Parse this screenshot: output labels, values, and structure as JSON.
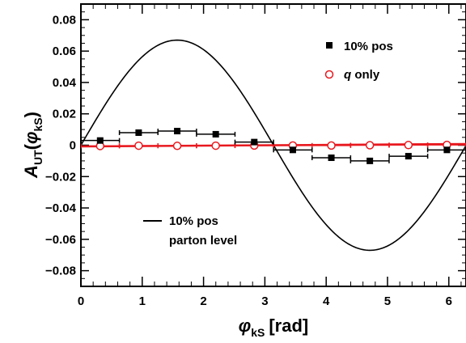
{
  "chart_data": {
    "type": "scatter",
    "xlabel": {
      "symbol": "φ",
      "subscript": "kS",
      "unit": "[rad]"
    },
    "ylabel": {
      "symbol": "A",
      "subscript": "UT",
      "arg_open": "(",
      "arg_symbol": "φ",
      "arg_subscript": "kS",
      "arg_close": ")"
    },
    "xlim": [
      0,
      6.28
    ],
    "ylim": [
      -0.09,
      0.09
    ],
    "x_ticks": [
      0,
      1,
      2,
      3,
      4,
      5,
      6
    ],
    "x_tick_labels": [
      "0",
      "1",
      "2",
      "3",
      "4",
      "5",
      "6"
    ],
    "y_ticks": [
      0.08,
      0.06,
      0.04,
      0.02,
      0,
      -0.02,
      -0.04,
      -0.06,
      -0.08
    ],
    "y_tick_labels": [
      "0.08",
      "0.06",
      "0.04",
      "0.02",
      "0",
      "−0.02",
      "−0.04",
      "−0.06",
      "−0.08"
    ],
    "series": [
      {
        "name": "10% pos",
        "marker": "filled-square",
        "color": "#000000",
        "x": [
          0.314,
          0.942,
          1.571,
          2.199,
          2.827,
          3.456,
          4.084,
          4.712,
          5.341,
          5.969
        ],
        "y": [
          0.003,
          0.008,
          0.009,
          0.007,
          0.002,
          -0.003,
          -0.008,
          -0.01,
          -0.007,
          -0.003
        ],
        "x_err": 0.314
      },
      {
        "name": "q only",
        "marker": "open-circle",
        "color": "#e8191f",
        "x": [
          0.314,
          0.942,
          1.571,
          2.199,
          2.827,
          3.456,
          4.084,
          4.712,
          5.341,
          5.969
        ],
        "y": [
          -0.0005,
          -0.0003,
          -0.0004,
          -0.0003,
          -0.0002,
          -0.0002,
          -0.0002,
          0.0,
          0.0001,
          0.0002
        ],
        "x_err": 0.314,
        "fit": {
          "type": "line",
          "y_start": -0.0008,
          "y_end": 0.0008,
          "color": "#e8191f"
        }
      },
      {
        "name": "10% pos parton level",
        "marker": "line",
        "color": "#000000",
        "function": "sin",
        "amplitude": 0.067
      }
    ],
    "legend": [
      {
        "label": "10% pos",
        "marker": "filled-square",
        "position": "top-right"
      },
      {
        "label_prefix": "q",
        "label_rest": " only",
        "marker": "open-circle",
        "position": "top-right"
      },
      {
        "label_lines": [
          "10% pos",
          "parton level"
        ],
        "marker": "line",
        "position": "lower-left"
      }
    ],
    "colors": {
      "axis": "#000000",
      "red": "#e8191f",
      "black": "#000000"
    }
  }
}
